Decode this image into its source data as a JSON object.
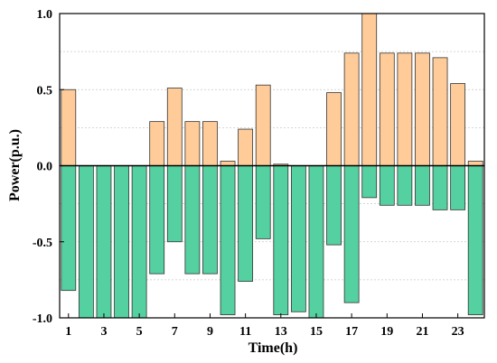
{
  "chart_data": {
    "type": "bar",
    "title": "",
    "xlabel": "Time(h)",
    "ylabel": "Power(p.u.)",
    "ylim": [
      -1.0,
      1.0
    ],
    "y_ticks": [
      -1.0,
      -0.5,
      0.0,
      0.5,
      1.0
    ],
    "y_tick_labels": [
      "-1.0",
      "-0.5",
      "0.0",
      "0.5",
      "1.0"
    ],
    "x_tick_labels": [
      "1",
      "3",
      "5",
      "7",
      "9",
      "11",
      "13",
      "15",
      "17",
      "19",
      "21",
      "23"
    ],
    "categories": [
      1,
      2,
      3,
      4,
      5,
      6,
      7,
      8,
      9,
      10,
      11,
      12,
      13,
      14,
      15,
      16,
      17,
      18,
      19,
      20,
      21,
      22,
      23,
      24
    ],
    "grid": "horizontal dashed",
    "legend": "none",
    "series": [
      {
        "color": "#FFCC99",
        "values": [
          0.5,
          0,
          0,
          0,
          0,
          0.29,
          0.51,
          0.29,
          0.29,
          0.03,
          0.24,
          0.53,
          0.01,
          0,
          0,
          0.48,
          0.74,
          1.0,
          0.74,
          0.74,
          0.74,
          0.71,
          0.54,
          0.03
        ]
      },
      {
        "color": "#55D0A0",
        "values": [
          -0.82,
          -1.0,
          -1.0,
          -1.0,
          -1.0,
          -0.71,
          -0.5,
          -0.71,
          -0.71,
          -0.98,
          -0.76,
          -0.48,
          -0.98,
          -0.96,
          -1.0,
          -0.52,
          -0.9,
          -0.21,
          -0.26,
          -0.26,
          -0.26,
          -0.29,
          -0.29,
          -0.98
        ]
      }
    ]
  }
}
